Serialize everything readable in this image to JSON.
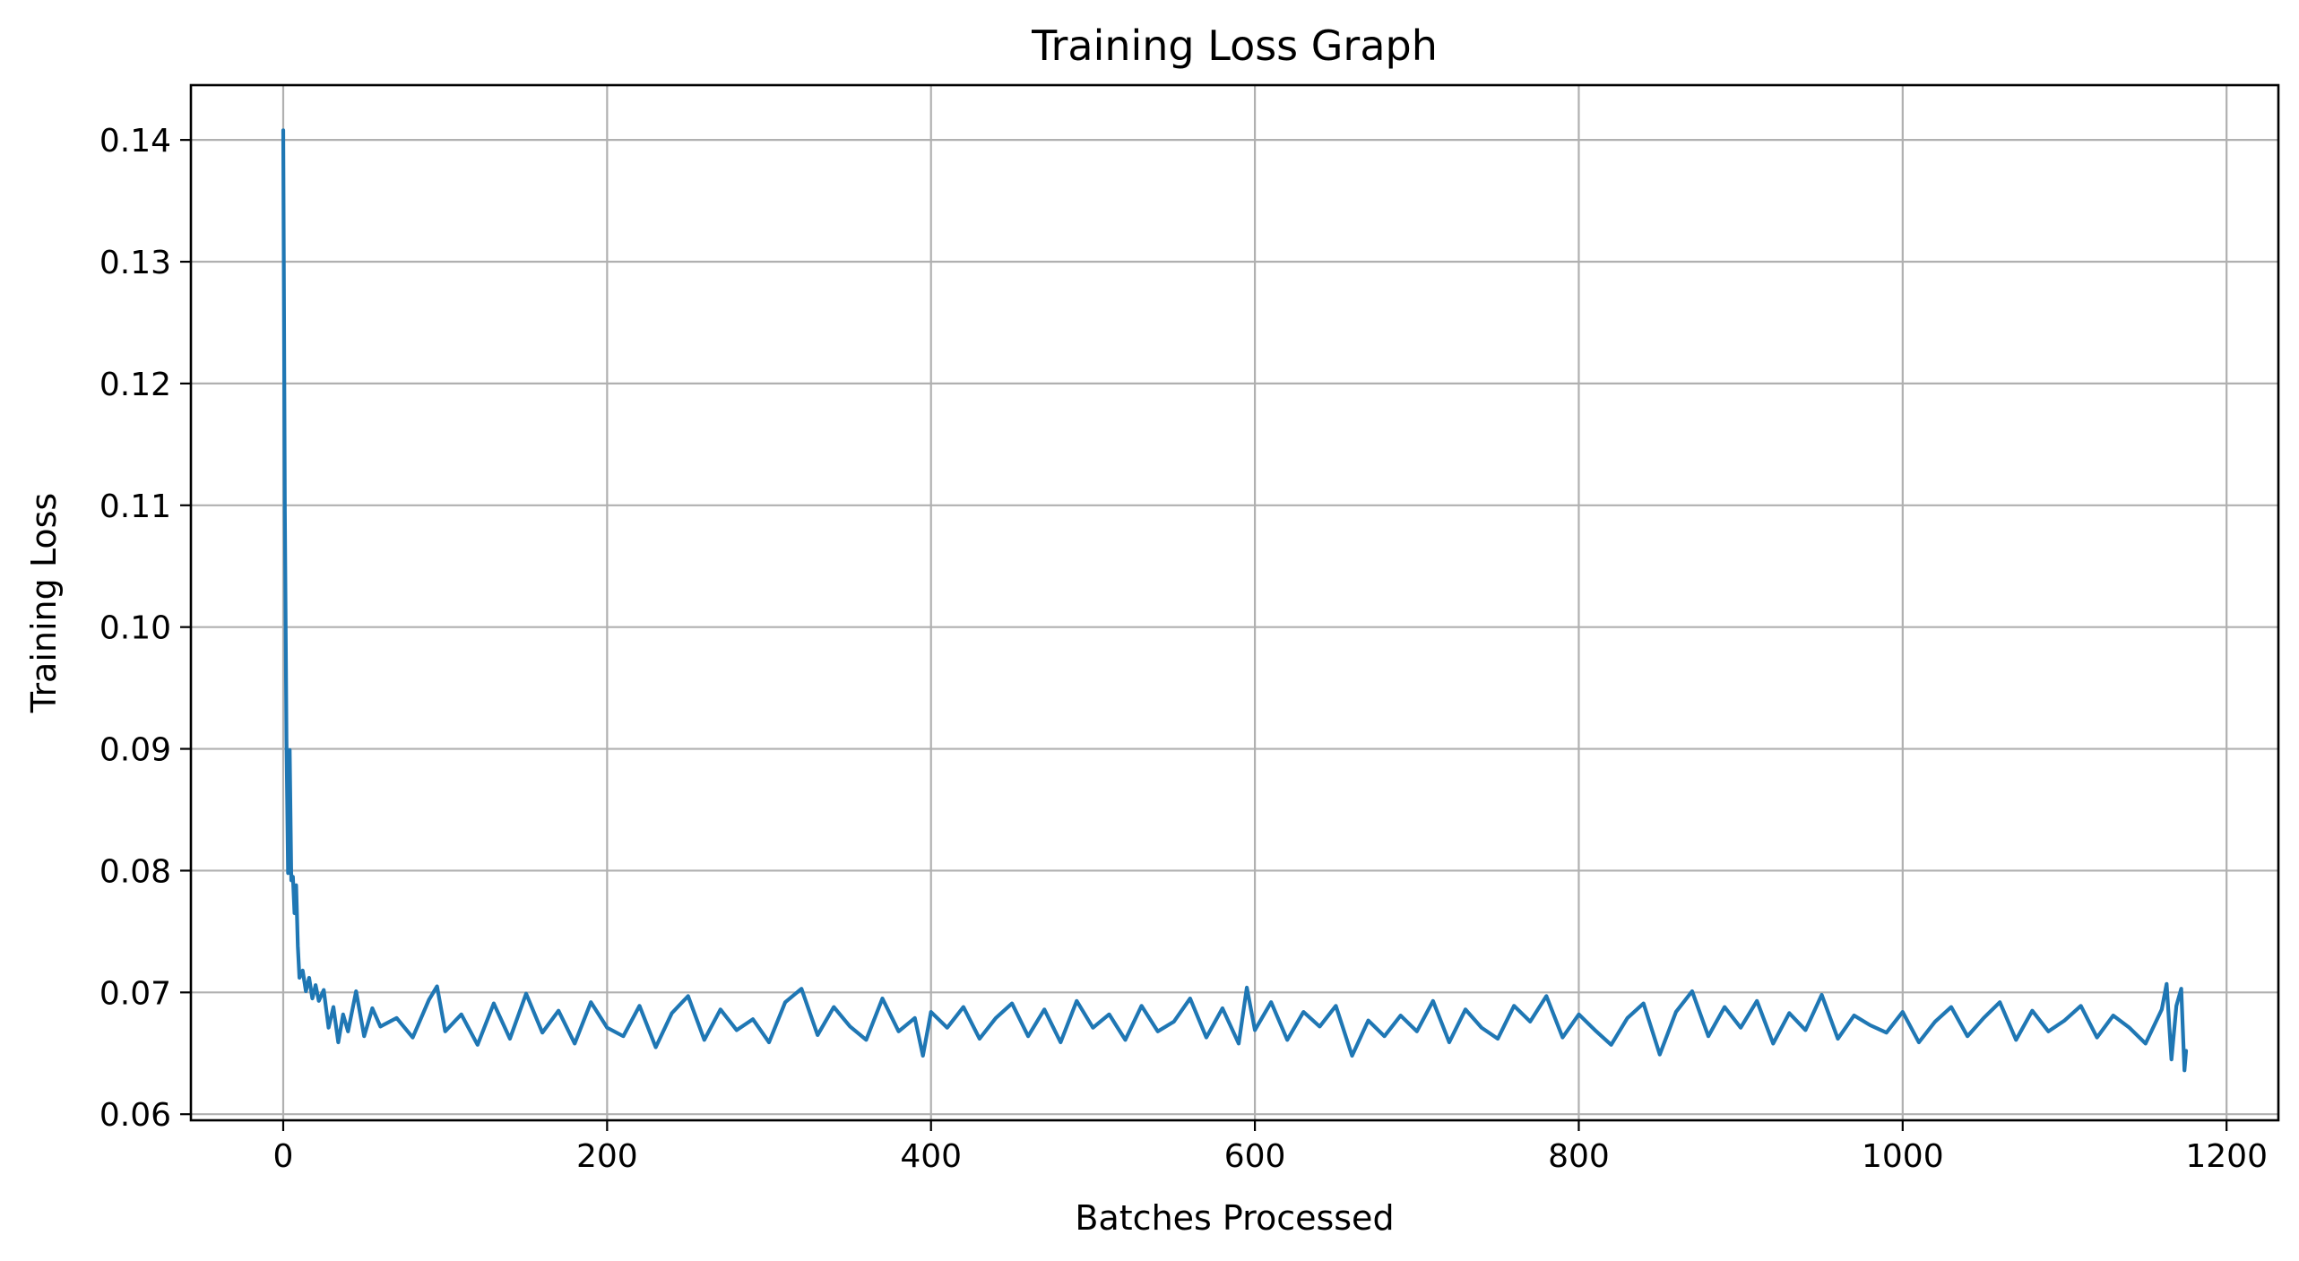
{
  "chart_data": {
    "type": "line",
    "title": "Training Loss Graph",
    "xlabel": "Batches Processed",
    "ylabel": "Training Loss",
    "xlim": [
      -57,
      1232
    ],
    "ylim": [
      0.0595,
      0.1445
    ],
    "xticks": [
      0,
      200,
      400,
      600,
      800,
      1000,
      1200
    ],
    "xtick_labels": [
      "0",
      "200",
      "400",
      "600",
      "800",
      "1000",
      "1200"
    ],
    "yticks": [
      0.06,
      0.07,
      0.08,
      0.09,
      0.1,
      0.11,
      0.12,
      0.13,
      0.14
    ],
    "ytick_labels": [
      "0.06",
      "0.07",
      "0.08",
      "0.09",
      "0.10",
      "0.11",
      "0.12",
      "0.13",
      "0.14"
    ],
    "grid": true,
    "series": [
      {
        "color": "#1f77b4",
        "x": [
          0,
          1,
          2,
          3,
          4,
          5,
          6,
          7,
          8,
          9,
          10,
          12,
          14,
          16,
          18,
          20,
          22,
          25,
          28,
          31,
          34,
          37,
          40,
          45,
          50,
          55,
          60,
          70,
          80,
          90,
          95,
          100,
          110,
          120,
          130,
          140,
          150,
          160,
          170,
          180,
          190,
          200,
          210,
          220,
          230,
          240,
          250,
          260,
          270,
          280,
          290,
          300,
          310,
          320,
          330,
          340,
          350,
          360,
          370,
          380,
          390,
          395,
          400,
          410,
          420,
          430,
          440,
          450,
          460,
          470,
          480,
          490,
          500,
          510,
          520,
          530,
          540,
          550,
          560,
          570,
          580,
          590,
          595,
          600,
          610,
          620,
          630,
          640,
          650,
          660,
          670,
          680,
          690,
          700,
          710,
          720,
          730,
          740,
          750,
          760,
          770,
          780,
          790,
          800,
          810,
          820,
          830,
          840,
          850,
          860,
          870,
          880,
          890,
          900,
          910,
          920,
          930,
          940,
          950,
          960,
          970,
          980,
          990,
          1000,
          1010,
          1020,
          1030,
          1040,
          1050,
          1060,
          1070,
          1080,
          1090,
          1100,
          1110,
          1120,
          1130,
          1140,
          1150,
          1160,
          1163,
          1166,
          1169,
          1172,
          1174,
          1175
        ],
        "y": [
          0.1408,
          0.1095,
          0.0908,
          0.0798,
          0.0899,
          0.0792,
          0.0795,
          0.0765,
          0.0788,
          0.0738,
          0.0712,
          0.0718,
          0.0701,
          0.0712,
          0.0695,
          0.0706,
          0.0693,
          0.0702,
          0.0671,
          0.0688,
          0.0659,
          0.0682,
          0.0668,
          0.0701,
          0.0664,
          0.0687,
          0.0672,
          0.0679,
          0.0663,
          0.0694,
          0.0705,
          0.0668,
          0.0682,
          0.0657,
          0.0691,
          0.0662,
          0.0699,
          0.0667,
          0.0685,
          0.0658,
          0.0692,
          0.0671,
          0.0664,
          0.0689,
          0.0655,
          0.0683,
          0.0697,
          0.0661,
          0.0686,
          0.0669,
          0.0678,
          0.0659,
          0.0692,
          0.0703,
          0.0665,
          0.0688,
          0.0672,
          0.0661,
          0.0695,
          0.0668,
          0.0679,
          0.0648,
          0.0684,
          0.0671,
          0.0688,
          0.0662,
          0.0679,
          0.0691,
          0.0664,
          0.0686,
          0.0659,
          0.0693,
          0.0671,
          0.0682,
          0.0661,
          0.0689,
          0.0668,
          0.0676,
          0.0695,
          0.0663,
          0.0687,
          0.0658,
          0.0704,
          0.0669,
          0.0692,
          0.0661,
          0.0684,
          0.0672,
          0.0689,
          0.0648,
          0.0677,
          0.0664,
          0.0681,
          0.0668,
          0.0693,
          0.0659,
          0.0686,
          0.0671,
          0.0662,
          0.0689,
          0.0676,
          0.0697,
          0.0663,
          0.0682,
          0.0669,
          0.0657,
          0.0679,
          0.0691,
          0.0649,
          0.0684,
          0.0701,
          0.0664,
          0.0688,
          0.0671,
          0.0693,
          0.0658,
          0.0683,
          0.0669,
          0.0698,
          0.0662,
          0.0681,
          0.0673,
          0.0667,
          0.0684,
          0.0659,
          0.0676,
          0.0688,
          0.0664,
          0.0679,
          0.0692,
          0.0661,
          0.0685,
          0.0668,
          0.0677,
          0.0689,
          0.0663,
          0.0681,
          0.0671,
          0.0658,
          0.0686,
          0.0707,
          0.0645,
          0.0689,
          0.0703,
          0.0636,
          0.0652
        ]
      }
    ]
  }
}
